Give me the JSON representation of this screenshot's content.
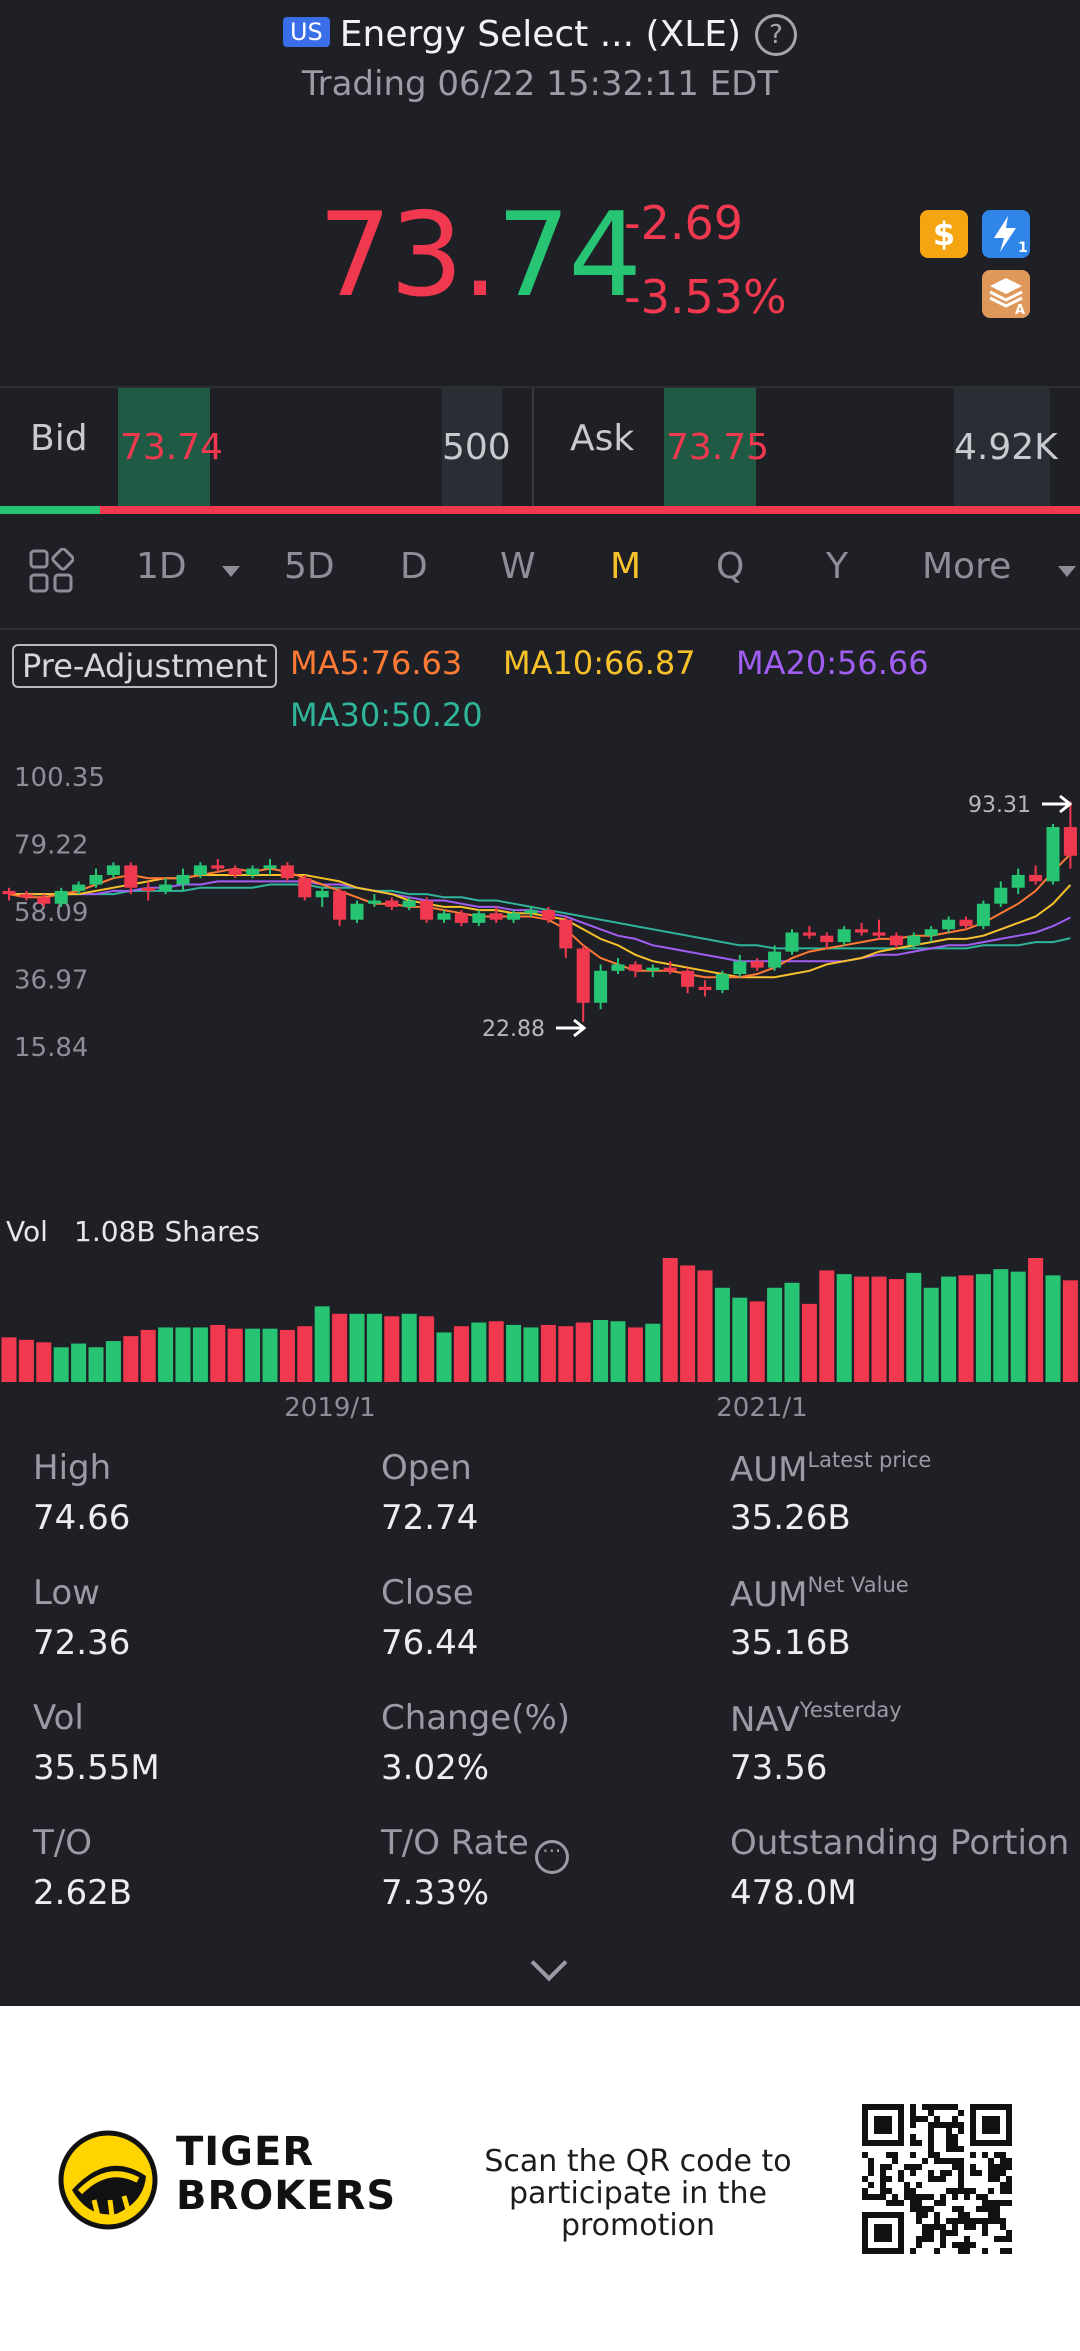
{
  "header": {
    "market_badge": "US",
    "title": "Energy Select ... (XLE)",
    "status": "Trading 06/22 15:32:11 EDT"
  },
  "quote": {
    "price_part1": "73.",
    "price_part2": "74",
    "change": "-2.69",
    "change_pct": "-3.53%"
  },
  "badges": [
    "dollar-badge",
    "lightning-badge",
    "stack-badge"
  ],
  "bid_ask": {
    "bid_label": "Bid",
    "bid_price": "73.74",
    "bid_volume": "500",
    "ask_label": "Ask",
    "ask_price": "73.75",
    "ask_volume": "4.92K"
  },
  "tabs": [
    "1D",
    "5D",
    "D",
    "W",
    "M",
    "Q",
    "Y",
    "More"
  ],
  "active_tab": "M",
  "chart_controls": {
    "adjust_label": "Pre-Adjustment",
    "ma5": "MA5:76.63",
    "ma10": "MA10:66.87",
    "ma20": "MA20:56.66",
    "ma30": "MA30:50.20"
  },
  "colors": {
    "up": "#27c474",
    "down": "#f0384f",
    "ma5": "#ff7a35",
    "ma10": "#f6c12b",
    "ma20": "#a15ef2",
    "ma30": "#2fb59a"
  },
  "chart_data": {
    "type": "candlestick",
    "y_ticks": [
      "100.35",
      "79.22",
      "58.09",
      "36.97",
      "15.84"
    ],
    "ylim": [
      15.84,
      100.35
    ],
    "x_ticks": [
      "2019/1",
      "2021/1"
    ],
    "high_label": "93.31",
    "low_label": "22.88",
    "volume_label": "Vol",
    "volume_value": "1.08B Shares",
    "candles": [
      [
        65,
        66,
        62,
        64
      ],
      [
        64,
        65,
        62,
        63
      ],
      [
        63,
        64,
        60,
        61
      ],
      [
        61,
        66,
        60,
        65
      ],
      [
        65,
        68,
        64,
        67
      ],
      [
        67,
        72,
        66,
        70
      ],
      [
        70,
        74,
        69,
        73
      ],
      [
        73,
        74,
        64,
        66
      ],
      [
        66,
        68,
        62,
        65
      ],
      [
        65,
        69,
        64,
        67
      ],
      [
        67,
        72,
        65,
        70
      ],
      [
        70,
        74,
        69,
        73
      ],
      [
        73,
        75,
        71,
        72
      ],
      [
        72,
        73,
        69,
        70
      ],
      [
        70,
        73,
        69,
        72
      ],
      [
        72,
        75,
        70,
        73
      ],
      [
        73,
        74,
        68,
        69
      ],
      [
        69,
        70,
        62,
        63
      ],
      [
        63,
        66,
        60,
        65
      ],
      [
        65,
        66,
        54,
        56
      ],
      [
        56,
        62,
        55,
        61
      ],
      [
        61,
        64,
        60,
        62
      ],
      [
        62,
        63,
        59,
        60
      ],
      [
        60,
        63,
        59,
        62
      ],
      [
        62,
        63,
        55,
        56
      ],
      [
        56,
        59,
        55,
        58
      ],
      [
        58,
        59,
        54,
        55
      ],
      [
        55,
        59,
        54,
        58
      ],
      [
        58,
        60,
        55,
        56
      ],
      [
        56,
        59,
        55,
        58
      ],
      [
        58,
        60,
        57,
        59
      ],
      [
        59,
        60,
        55,
        56
      ],
      [
        56,
        57,
        44,
        47
      ],
      [
        47,
        48,
        24,
        30
      ],
      [
        30,
        42,
        28,
        40
      ],
      [
        40,
        44,
        39,
        42
      ],
      [
        42,
        43,
        38,
        40
      ],
      [
        40,
        42,
        38,
        41
      ],
      [
        41,
        43,
        39,
        40
      ],
      [
        40,
        41,
        33,
        35
      ],
      [
        35,
        37,
        32,
        34
      ],
      [
        34,
        40,
        33,
        39
      ],
      [
        39,
        45,
        38,
        43
      ],
      [
        43,
        44,
        40,
        41
      ],
      [
        41,
        48,
        40,
        46
      ],
      [
        46,
        53,
        45,
        52
      ],
      [
        52,
        54,
        50,
        51
      ],
      [
        51,
        52,
        47,
        49
      ],
      [
        49,
        54,
        48,
        53
      ],
      [
        53,
        55,
        51,
        52
      ],
      [
        52,
        56,
        50,
        51
      ],
      [
        51,
        52,
        47,
        48
      ],
      [
        48,
        52,
        47,
        51
      ],
      [
        51,
        54,
        49,
        53
      ],
      [
        53,
        57,
        52,
        56
      ],
      [
        56,
        57,
        53,
        54
      ],
      [
        54,
        62,
        53,
        61
      ],
      [
        61,
        68,
        60,
        66
      ],
      [
        66,
        72,
        64,
        70
      ],
      [
        70,
        73,
        67,
        68
      ],
      [
        68,
        86,
        67,
        85
      ],
      [
        85,
        93,
        72,
        76
      ]
    ],
    "volumes": [
      0.36,
      0.34,
      0.32,
      0.28,
      0.31,
      0.28,
      0.33,
      0.37,
      0.42,
      0.44,
      0.44,
      0.44,
      0.46,
      0.43,
      0.43,
      0.43,
      0.42,
      0.45,
      0.61,
      0.55,
      0.55,
      0.55,
      0.53,
      0.55,
      0.53,
      0.4,
      0.45,
      0.48,
      0.49,
      0.46,
      0.44,
      0.46,
      0.45,
      0.48,
      0.5,
      0.49,
      0.44,
      0.47,
      1.0,
      0.94,
      0.9,
      0.76,
      0.68,
      0.65,
      0.76,
      0.8,
      0.63,
      0.9,
      0.87,
      0.85,
      0.85,
      0.83,
      0.88,
      0.76,
      0.85,
      0.86,
      0.87,
      0.91,
      0.89,
      1.0,
      0.86,
      0.82
    ],
    "ma5": [
      64,
      63,
      63,
      64,
      65,
      67,
      69,
      70,
      69,
      69,
      69,
      70,
      71,
      72,
      71,
      72,
      71,
      69,
      67,
      65,
      63,
      61,
      61,
      60,
      60,
      59,
      58,
      57,
      57,
      57,
      57,
      56,
      53,
      48,
      44,
      42,
      40,
      40,
      40,
      39,
      38,
      38,
      38,
      39,
      41,
      44,
      46,
      47,
      48,
      49,
      50,
      50,
      51,
      51,
      52,
      53,
      55,
      58,
      61,
      65,
      71,
      76.6
    ],
    "ma10": [
      64,
      64,
      64,
      64,
      64,
      65,
      66,
      67,
      68,
      69,
      69,
      70,
      70,
      70,
      70,
      70,
      70,
      70,
      69,
      68,
      66,
      65,
      64,
      62,
      61,
      60,
      60,
      59,
      59,
      58,
      58,
      57,
      56,
      53,
      50,
      48,
      45,
      43,
      42,
      41,
      40,
      39,
      38,
      38,
      38,
      39,
      40,
      42,
      43,
      44,
      46,
      47,
      48,
      49,
      50,
      50,
      51,
      53,
      55,
      57,
      61,
      66.9
    ],
    "ma20": [
      64,
      64,
      64,
      64,
      64,
      64,
      65,
      65,
      66,
      66,
      67,
      67,
      68,
      68,
      68,
      68,
      68,
      68,
      67,
      67,
      66,
      65,
      64,
      63,
      62,
      62,
      61,
      60,
      60,
      59,
      59,
      58,
      57,
      55,
      53,
      51,
      50,
      48,
      47,
      46,
      45,
      44,
      43,
      43,
      43,
      43,
      43,
      43,
      43,
      44,
      45,
      45,
      46,
      47,
      48,
      48,
      49,
      50,
      51,
      52,
      54,
      56.7
    ],
    "ma30": [
      64,
      64,
      64,
      64,
      64,
      64,
      64,
      65,
      65,
      65,
      65,
      66,
      66,
      66,
      66,
      67,
      67,
      67,
      66,
      66,
      66,
      65,
      65,
      64,
      64,
      63,
      63,
      62,
      62,
      61,
      60,
      59,
      58,
      57,
      56,
      55,
      54,
      53,
      52,
      51,
      50,
      49,
      48,
      48,
      47,
      47,
      47,
      47,
      47,
      47,
      47,
      47,
      47,
      47,
      47,
      47,
      48,
      48,
      48,
      49,
      49,
      50.2
    ]
  },
  "stats": [
    {
      "label": "High",
      "value": "74.66"
    },
    {
      "label": "Open",
      "value": "72.74"
    },
    {
      "label": "AUM",
      "sup": "Latest price",
      "value": "35.26B"
    },
    {
      "label": "Low",
      "value": "72.36"
    },
    {
      "label": "Close",
      "value": "76.44"
    },
    {
      "label": "AUM",
      "sup": "Net Value",
      "value": "35.16B"
    },
    {
      "label": "Vol",
      "value": "35.55M"
    },
    {
      "label": "Change(%)",
      "value": "3.02%"
    },
    {
      "label": "NAV",
      "sup": "Yesterday",
      "value": "73.56"
    },
    {
      "label": "T/O",
      "value": "2.62B"
    },
    {
      "label": "T/O Rate",
      "value": "7.33%"
    },
    {
      "label": "Outstanding Portion",
      "value": "478.0M"
    }
  ],
  "footer": {
    "brand_line1": "TIGER",
    "brand_line2": "BROKERS",
    "promo_line1": "Scan the QR code to",
    "promo_line2": "participate in the promotion"
  }
}
